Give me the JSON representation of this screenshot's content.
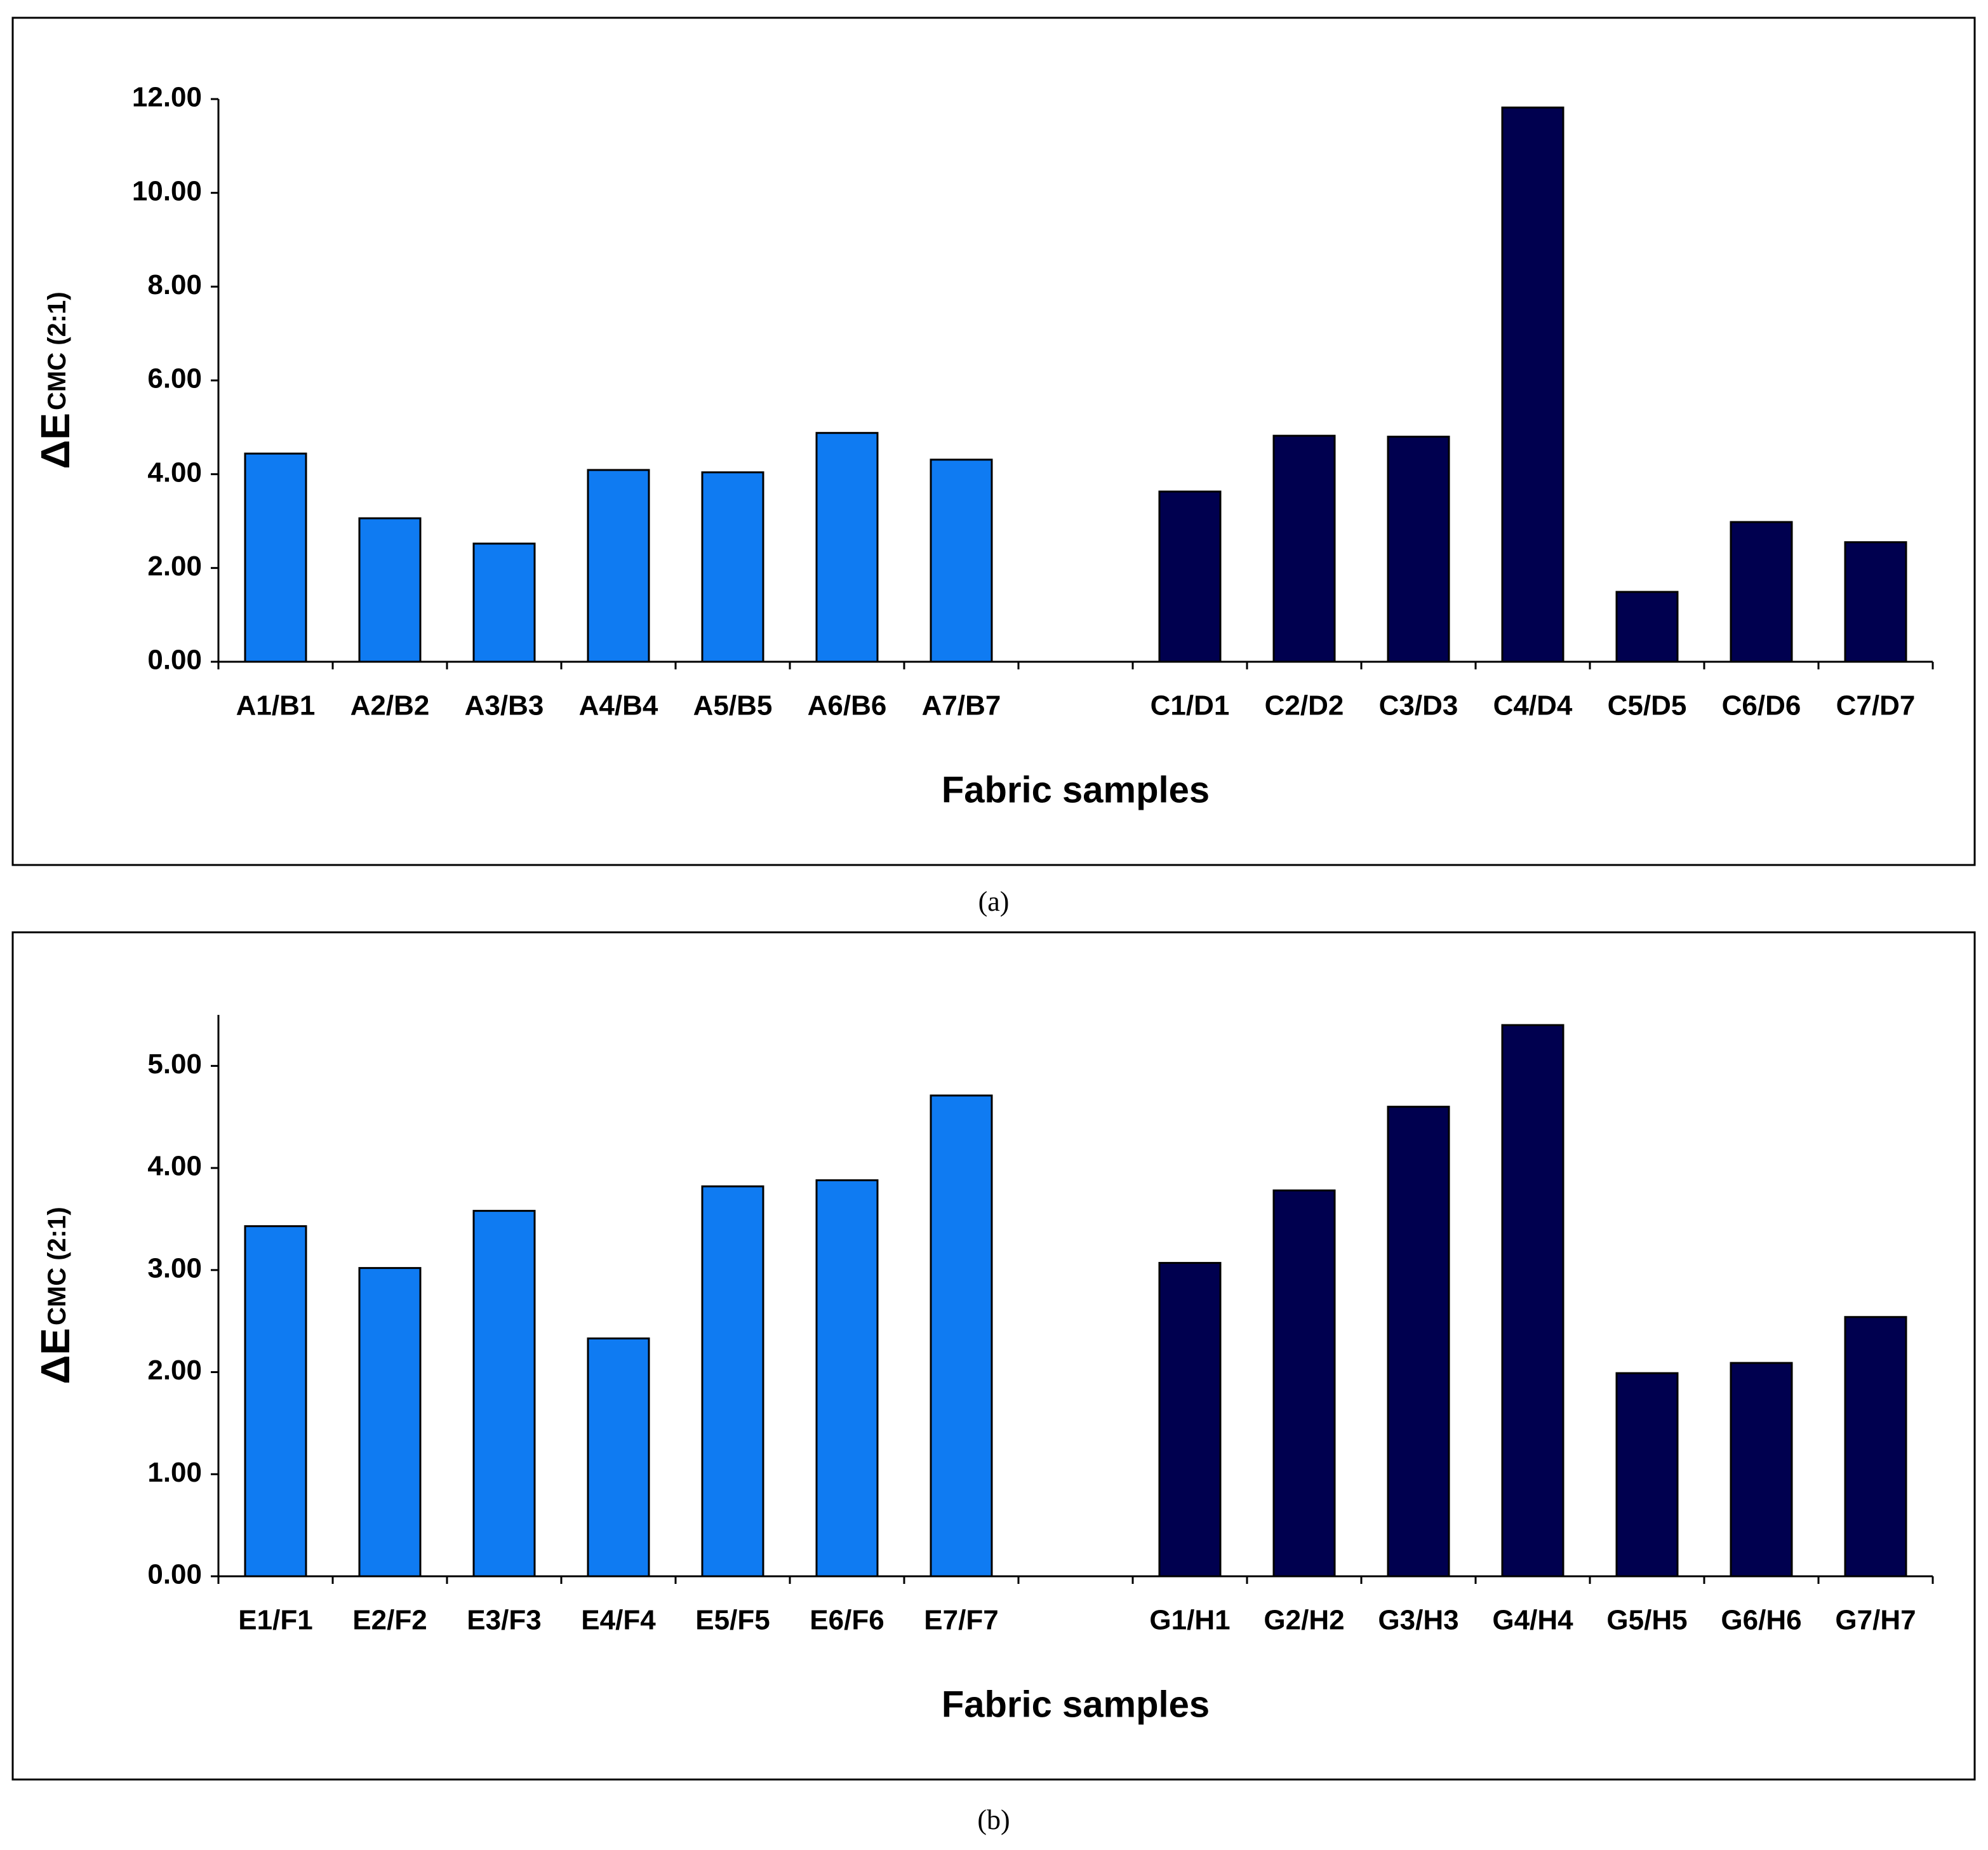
{
  "chart_data": [
    {
      "type": "bar",
      "caption": "(a)",
      "x_label": "Fabric samples",
      "y_label": "ΔE",
      "y_label_sub": "CMC (2:1)",
      "categories": [
        "A1/B1",
        "A2/B2",
        "A3/B3",
        "A4/B4",
        "A5/B5",
        "A6/B6",
        "A7/B7",
        null,
        "C1/D1",
        "C2/D2",
        "C3/D3",
        "C4/D4",
        "C5/D5",
        "C6/D6",
        "C7/D7"
      ],
      "series": [
        {
          "color": "#0f7bf2",
          "values": [
            4.44,
            3.06,
            2.52,
            4.09,
            4.04,
            4.88,
            4.31,
            null,
            null,
            null,
            null,
            null,
            null,
            null,
            null
          ]
        },
        {
          "color": "#00004f",
          "values": [
            null,
            null,
            null,
            null,
            null,
            null,
            null,
            null,
            3.63,
            4.82,
            4.8,
            11.82,
            1.49,
            2.98,
            2.55
          ]
        }
      ],
      "ylim": [
        0,
        12
      ],
      "yticks": [
        {
          "value": 0,
          "label": "0.00"
        },
        {
          "value": 2,
          "label": "2.00"
        },
        {
          "value": 4,
          "label": "4.00"
        },
        {
          "value": 6,
          "label": "6.00"
        },
        {
          "value": 8,
          "label": "8.00"
        },
        {
          "value": 10,
          "label": "10.00"
        },
        {
          "value": 12,
          "label": "12.00"
        }
      ],
      "grid": false
    },
    {
      "type": "bar",
      "caption": "(b)",
      "x_label": "Fabric samples",
      "y_label": "ΔE",
      "y_label_sub": "CMC (2:1)",
      "categories": [
        "E1/F1",
        "E2/F2",
        "E3/F3",
        "E4/F4",
        "E5/F5",
        "E6/F6",
        "E7/F7",
        null,
        "G1/H1",
        "G2/H2",
        "G3/H3",
        "G4/H4",
        "G5/H5",
        "G6/H6",
        "G7/H7"
      ],
      "series": [
        {
          "color": "#0f7bf2",
          "values": [
            3.43,
            3.02,
            3.58,
            2.33,
            3.82,
            3.88,
            4.71,
            null,
            null,
            null,
            null,
            null,
            null,
            null,
            null
          ]
        },
        {
          "color": "#00004f",
          "values": [
            null,
            null,
            null,
            null,
            null,
            null,
            null,
            null,
            3.07,
            3.78,
            4.6,
            5.4,
            1.99,
            2.09,
            2.54
          ]
        }
      ],
      "ylim": [
        0,
        5.5
      ],
      "yticks": [
        {
          "value": 0,
          "label": "0.00"
        },
        {
          "value": 1,
          "label": "1.00"
        },
        {
          "value": 2,
          "label": "2.00"
        },
        {
          "value": 3,
          "label": "3.00"
        },
        {
          "value": 4,
          "label": "4.00"
        },
        {
          "value": 5,
          "label": "5.00"
        }
      ],
      "grid": false
    }
  ]
}
